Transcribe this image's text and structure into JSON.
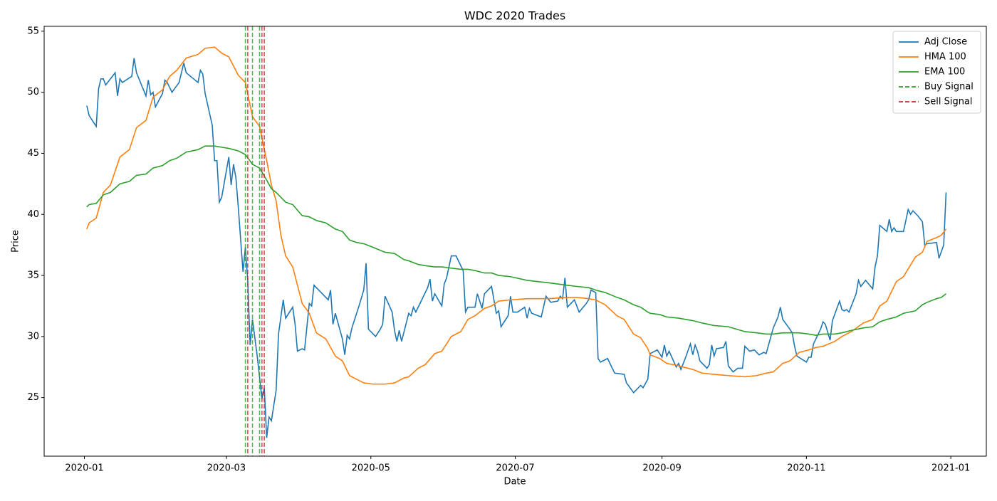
{
  "chart_data": {
    "type": "line",
    "title": "WDC 2020 Trades",
    "xlabel": "Date",
    "ylabel": "Price",
    "xlim": [
      "2019-12-15",
      "2021-01-16"
    ],
    "ylim": [
      20.2,
      55.4
    ],
    "xticks": [
      {
        "value": "2020-01-01",
        "label": "2020-01"
      },
      {
        "value": "2020-03-01",
        "label": "2020-03"
      },
      {
        "value": "2020-05-01",
        "label": "2020-05"
      },
      {
        "value": "2020-07-01",
        "label": "2020-07"
      },
      {
        "value": "2020-09-01",
        "label": "2020-09"
      },
      {
        "value": "2020-11-01",
        "label": "2020-11"
      },
      {
        "value": "2021-01-01",
        "label": "2021-01"
      }
    ],
    "yticks": [
      25,
      30,
      35,
      40,
      45,
      50,
      55
    ],
    "legend": "upper right",
    "series": [
      {
        "name": "Adj Close",
        "color": "#1f77b4",
        "x": [
          "2020-01-02",
          "2020-01-03",
          "2020-01-06",
          "2020-01-07",
          "2020-01-08",
          "2020-01-09",
          "2020-01-10",
          "2020-01-14",
          "2020-01-15",
          "2020-01-16",
          "2020-01-17",
          "2020-01-21",
          "2020-01-22",
          "2020-01-23",
          "2020-01-27",
          "2020-01-28",
          "2020-01-29",
          "2020-01-30",
          "2020-01-31",
          "2020-02-03",
          "2020-02-04",
          "2020-02-05",
          "2020-02-07",
          "2020-02-10",
          "2020-02-12",
          "2020-02-13",
          "2020-02-18",
          "2020-02-19",
          "2020-02-20",
          "2020-02-21",
          "2020-02-24",
          "2020-02-25",
          "2020-02-26",
          "2020-02-27",
          "2020-02-28",
          "2020-03-02",
          "2020-03-03",
          "2020-03-04",
          "2020-03-05",
          "2020-03-06",
          "2020-03-08",
          "2020-03-09",
          "2020-03-10",
          "2020-03-11",
          "2020-03-12",
          "2020-03-14",
          "2020-03-16",
          "2020-03-17",
          "2020-03-18",
          "2020-03-19",
          "2020-03-20",
          "2020-03-22",
          "2020-03-23",
          "2020-03-25",
          "2020-03-26",
          "2020-03-29",
          "2020-03-30",
          "2020-03-31",
          "2020-04-02",
          "2020-04-03",
          "2020-04-05",
          "2020-04-06",
          "2020-04-07",
          "2020-04-10",
          "2020-04-13",
          "2020-04-14",
          "2020-04-15",
          "2020-04-16",
          "2020-04-19",
          "2020-04-20",
          "2020-04-21",
          "2020-04-22",
          "2020-04-23",
          "2020-04-26",
          "2020-04-28",
          "2020-04-29",
          "2020-04-30",
          "2020-05-03",
          "2020-05-05",
          "2020-05-06",
          "2020-05-07",
          "2020-05-10",
          "2020-05-11",
          "2020-05-12",
          "2020-05-13",
          "2020-05-14",
          "2020-05-17",
          "2020-05-18",
          "2020-05-19",
          "2020-05-20",
          "2020-05-25",
          "2020-05-26",
          "2020-05-27",
          "2020-05-28",
          "2020-05-31",
          "2020-06-01",
          "2020-06-02",
          "2020-06-04",
          "2020-06-06",
          "2020-06-09",
          "2020-06-10",
          "2020-06-11",
          "2020-06-14",
          "2020-06-15",
          "2020-06-17",
          "2020-06-18",
          "2020-06-21",
          "2020-06-23",
          "2020-06-24",
          "2020-06-25",
          "2020-06-28",
          "2020-06-29",
          "2020-06-30",
          "2020-07-02",
          "2020-07-05",
          "2020-07-06",
          "2020-07-07",
          "2020-07-08",
          "2020-07-12",
          "2020-07-14",
          "2020-07-16",
          "2020-07-19",
          "2020-07-20",
          "2020-07-21",
          "2020-07-22",
          "2020-07-23",
          "2020-07-26",
          "2020-07-28",
          "2020-07-31",
          "2020-08-01",
          "2020-08-02",
          "2020-08-04",
          "2020-08-05",
          "2020-08-06",
          "2020-08-09",
          "2020-08-10",
          "2020-08-12",
          "2020-08-16",
          "2020-08-17",
          "2020-08-20",
          "2020-08-23",
          "2020-08-24",
          "2020-08-26",
          "2020-08-27",
          "2020-08-30",
          "2020-09-01",
          "2020-09-02",
          "2020-09-03",
          "2020-09-04",
          "2020-09-07",
          "2020-09-08",
          "2020-09-09",
          "2020-09-11",
          "2020-09-13",
          "2020-09-14",
          "2020-09-15",
          "2020-09-16",
          "2020-09-17",
          "2020-09-20",
          "2020-09-21",
          "2020-09-22",
          "2020-09-23",
          "2020-09-24",
          "2020-09-27",
          "2020-09-28",
          "2020-09-29",
          "2020-10-01",
          "2020-10-03",
          "2020-10-05",
          "2020-10-06",
          "2020-10-08",
          "2020-10-10",
          "2020-10-12",
          "2020-10-14",
          "2020-10-15",
          "2020-10-18",
          "2020-10-20",
          "2020-10-21",
          "2020-10-22",
          "2020-10-25",
          "2020-10-26",
          "2020-10-27",
          "2020-10-28",
          "2020-11-01",
          "2020-11-02",
          "2020-11-03",
          "2020-11-04",
          "2020-11-07",
          "2020-11-08",
          "2020-11-09",
          "2020-11-11",
          "2020-11-12",
          "2020-11-15",
          "2020-11-16",
          "2020-11-17",
          "2020-11-18",
          "2020-11-19",
          "2020-11-22",
          "2020-11-23",
          "2020-11-24",
          "2020-11-26",
          "2020-11-29",
          "2020-11-30",
          "2020-12-01",
          "2020-12-02",
          "2020-12-05",
          "2020-12-06",
          "2020-12-07",
          "2020-12-08",
          "2020-12-09",
          "2020-12-12",
          "2020-12-14",
          "2020-12-15",
          "2020-12-16",
          "2020-12-18",
          "2020-12-20",
          "2020-12-21",
          "2020-12-22",
          "2020-12-26",
          "2020-12-27",
          "2020-12-29",
          "2020-12-30"
        ],
        "values": [
          48.9,
          48.1,
          47.2,
          50.3,
          51.1,
          51.1,
          50.6,
          51.6,
          49.7,
          51.1,
          50.8,
          51.3,
          52.8,
          51.6,
          49.7,
          51.0,
          49.8,
          50.0,
          48.8,
          49.9,
          51.0,
          50.8,
          50.0,
          50.8,
          52.4,
          51.6,
          50.8,
          51.8,
          51.5,
          49.9,
          47.3,
          44.4,
          44.4,
          41.0,
          41.4,
          44.7,
          42.4,
          44.1,
          43.0,
          40.6,
          35.3,
          37.3,
          34.6,
          29.3,
          31.4,
          28.4,
          24.9,
          25.8,
          21.7,
          23.4,
          23.1,
          25.6,
          30.2,
          33.0,
          31.5,
          32.4,
          31.0,
          28.8,
          29.0,
          28.9,
          32.7,
          32.5,
          34.2,
          33.6,
          33.0,
          33.8,
          31.0,
          31.9,
          29.8,
          28.5,
          30.1,
          29.8,
          30.7,
          32.5,
          33.8,
          36.0,
          30.6,
          30.0,
          30.6,
          31.0,
          33.3,
          32.0,
          30.5,
          29.6,
          30.5,
          29.6,
          31.9,
          31.7,
          32.4,
          32.0,
          34.0,
          34.7,
          32.9,
          33.5,
          32.5,
          34.3,
          34.8,
          36.6,
          36.6,
          35.4,
          32.0,
          32.4,
          32.4,
          33.5,
          32.3,
          33.5,
          34.1,
          31.9,
          32.1,
          30.8,
          31.7,
          33.3,
          32.0,
          32.0,
          32.4,
          31.5,
          32.3,
          31.9,
          31.6,
          33.3,
          32.8,
          32.9,
          33.3,
          33.1,
          34.8,
          32.4,
          33.0,
          32.0,
          32.7,
          33.0,
          33.8,
          33.6,
          28.2,
          27.9,
          28.2,
          27.8,
          27.0,
          26.9,
          26.2,
          25.4,
          26.0,
          25.8,
          26.5,
          28.6,
          28.9,
          28.3,
          29.3,
          28.4,
          28.8,
          27.5,
          27.8,
          27.3,
          28.3,
          29.4,
          28.5,
          29.3,
          28.8,
          28.0,
          27.4,
          27.7,
          29.3,
          28.4,
          29.0,
          29.1,
          29.6,
          27.6,
          27.1,
          27.4,
          27.4,
          29.2,
          28.8,
          28.9,
          28.5,
          28.7,
          28.6,
          30.7,
          31.6,
          32.4,
          31.4,
          30.6,
          30.3,
          29.2,
          28.4,
          27.9,
          28.3,
          28.3,
          29.4,
          30.6,
          31.2,
          31.0,
          29.7,
          31.3,
          32.9,
          32.2,
          32.1,
          32.2,
          32.0,
          33.5,
          34.6,
          34.1,
          34.6,
          33.9,
          35.7,
          36.6,
          39.1,
          38.6,
          39.6,
          38.6,
          38.9,
          38.6,
          38.6,
          40.4,
          40.0,
          40.3,
          39.9,
          39.4,
          37.5,
          37.6,
          37.7,
          36.4,
          37.5,
          41.8
        ]
      },
      {
        "name": "HMA 100",
        "color": "#ff7f0e",
        "x": [
          "2020-01-02",
          "2020-01-03",
          "2020-01-06",
          "2020-01-09",
          "2020-01-12",
          "2020-01-16",
          "2020-01-20",
          "2020-01-23",
          "2020-01-27",
          "2020-01-30",
          "2020-02-03",
          "2020-02-06",
          "2020-02-09",
          "2020-02-13",
          "2020-02-18",
          "2020-02-21",
          "2020-02-25",
          "2020-02-28",
          "2020-03-02",
          "2020-03-06",
          "2020-03-09",
          "2020-03-12",
          "2020-03-15",
          "2020-03-18",
          "2020-03-20",
          "2020-03-22",
          "2020-03-24",
          "2020-03-26",
          "2020-03-29",
          "2020-04-02",
          "2020-04-05",
          "2020-04-08",
          "2020-04-12",
          "2020-04-16",
          "2020-04-19",
          "2020-04-22",
          "2020-04-25",
          "2020-04-28",
          "2020-05-02",
          "2020-05-07",
          "2020-05-11",
          "2020-05-15",
          "2020-05-17",
          "2020-05-21",
          "2020-05-24",
          "2020-05-28",
          "2020-05-31",
          "2020-06-04",
          "2020-06-08",
          "2020-06-11",
          "2020-06-14",
          "2020-06-18",
          "2020-06-21",
          "2020-06-24",
          "2020-06-29",
          "2020-07-06",
          "2020-07-15",
          "2020-07-23",
          "2020-07-27",
          "2020-08-01",
          "2020-08-04",
          "2020-08-08",
          "2020-08-13",
          "2020-08-16",
          "2020-08-20",
          "2020-08-23",
          "2020-08-26",
          "2020-08-27",
          "2020-08-31",
          "2020-09-03",
          "2020-09-08",
          "2020-09-14",
          "2020-09-18",
          "2020-09-23",
          "2020-09-29",
          "2020-10-06",
          "2020-10-11",
          "2020-10-15",
          "2020-10-18",
          "2020-10-22",
          "2020-10-25",
          "2020-10-29",
          "2020-11-02",
          "2020-11-05",
          "2020-11-08",
          "2020-11-13",
          "2020-11-16",
          "2020-11-20",
          "2020-11-25",
          "2020-11-29",
          "2020-12-02",
          "2020-12-05",
          "2020-12-09",
          "2020-12-12",
          "2020-12-17",
          "2020-12-20",
          "2020-12-22",
          "2020-12-26",
          "2020-12-28",
          "2020-12-30"
        ],
        "values": [
          38.8,
          39.3,
          39.7,
          41.8,
          42.4,
          44.7,
          45.3,
          47.1,
          47.7,
          49.6,
          50.2,
          51.3,
          51.8,
          52.8,
          53.1,
          53.6,
          53.7,
          53.2,
          52.9,
          51.4,
          50.8,
          48.0,
          47.2,
          44.4,
          42.4,
          41.1,
          38.3,
          36.6,
          35.7,
          32.7,
          31.9,
          30.3,
          29.8,
          28.4,
          28.0,
          26.8,
          26.5,
          26.2,
          26.1,
          26.1,
          26.2,
          26.6,
          26.7,
          27.4,
          27.7,
          28.6,
          28.8,
          30.0,
          30.4,
          31.4,
          31.7,
          32.3,
          32.5,
          32.9,
          33.0,
          33.1,
          33.1,
          33.2,
          33.2,
          33.1,
          33.0,
          32.6,
          31.7,
          31.4,
          30.2,
          29.9,
          29.0,
          28.5,
          28.2,
          27.8,
          27.6,
          27.3,
          27.0,
          26.9,
          26.8,
          26.7,
          26.8,
          27.0,
          27.1,
          27.8,
          28.0,
          28.7,
          28.9,
          29.1,
          29.2,
          29.6,
          30.0,
          30.4,
          31.1,
          31.4,
          32.5,
          32.9,
          34.5,
          34.9,
          36.5,
          36.9,
          37.8,
          38.1,
          38.3,
          38.8
        ]
      },
      {
        "name": "EMA 100",
        "color": "#2ca02c",
        "x": [
          "2020-01-02",
          "2020-01-03",
          "2020-01-06",
          "2020-01-09",
          "2020-01-12",
          "2020-01-16",
          "2020-01-20",
          "2020-01-23",
          "2020-01-27",
          "2020-01-30",
          "2020-02-03",
          "2020-02-06",
          "2020-02-09",
          "2020-02-13",
          "2020-02-18",
          "2020-02-21",
          "2020-02-25",
          "2020-02-28",
          "2020-03-02",
          "2020-03-06",
          "2020-03-09",
          "2020-03-12",
          "2020-03-15",
          "2020-03-18",
          "2020-03-20",
          "2020-03-22",
          "2020-03-24",
          "2020-03-26",
          "2020-03-29",
          "2020-04-02",
          "2020-04-05",
          "2020-04-08",
          "2020-04-12",
          "2020-04-16",
          "2020-04-19",
          "2020-04-22",
          "2020-04-25",
          "2020-04-28",
          "2020-05-02",
          "2020-05-07",
          "2020-05-11",
          "2020-05-15",
          "2020-05-17",
          "2020-05-21",
          "2020-05-24",
          "2020-05-28",
          "2020-05-31",
          "2020-06-04",
          "2020-06-08",
          "2020-06-11",
          "2020-06-14",
          "2020-06-18",
          "2020-06-21",
          "2020-06-24",
          "2020-06-29",
          "2020-07-06",
          "2020-07-15",
          "2020-07-23",
          "2020-07-27",
          "2020-08-01",
          "2020-08-04",
          "2020-08-08",
          "2020-08-13",
          "2020-08-16",
          "2020-08-20",
          "2020-08-23",
          "2020-08-26",
          "2020-08-27",
          "2020-08-31",
          "2020-09-03",
          "2020-09-08",
          "2020-09-14",
          "2020-09-18",
          "2020-09-23",
          "2020-09-29",
          "2020-10-06",
          "2020-10-11",
          "2020-10-15",
          "2020-10-18",
          "2020-10-22",
          "2020-10-25",
          "2020-10-29",
          "2020-11-02",
          "2020-11-05",
          "2020-11-08",
          "2020-11-13",
          "2020-11-16",
          "2020-11-20",
          "2020-11-25",
          "2020-11-29",
          "2020-12-02",
          "2020-12-05",
          "2020-12-09",
          "2020-12-12",
          "2020-12-17",
          "2020-12-20",
          "2020-12-22",
          "2020-12-26",
          "2020-12-28",
          "2020-12-30"
        ],
        "values": [
          40.6,
          40.8,
          40.9,
          41.6,
          41.8,
          42.5,
          42.7,
          43.2,
          43.3,
          43.8,
          44.0,
          44.4,
          44.6,
          45.1,
          45.3,
          45.6,
          45.6,
          45.5,
          45.4,
          45.2,
          44.9,
          44.1,
          43.8,
          42.8,
          42.1,
          41.8,
          41.4,
          41.0,
          40.8,
          39.9,
          39.8,
          39.5,
          39.3,
          38.8,
          38.6,
          37.9,
          37.7,
          37.6,
          37.3,
          36.9,
          36.8,
          36.3,
          36.2,
          35.9,
          35.8,
          35.7,
          35.7,
          35.6,
          35.5,
          35.5,
          35.4,
          35.2,
          35.2,
          35.0,
          34.9,
          34.6,
          34.4,
          34.2,
          34.1,
          34.0,
          33.8,
          33.6,
          33.2,
          33.0,
          32.6,
          32.4,
          32.0,
          31.9,
          31.8,
          31.6,
          31.5,
          31.3,
          31.1,
          30.9,
          30.8,
          30.4,
          30.3,
          30.2,
          30.2,
          30.3,
          30.3,
          30.3,
          30.2,
          30.1,
          30.2,
          30.2,
          30.3,
          30.5,
          30.7,
          30.8,
          31.2,
          31.4,
          31.6,
          31.9,
          32.1,
          32.6,
          32.8,
          33.1,
          33.2,
          33.5
        ]
      },
      {
        "name": "Buy Signal",
        "type": "vline",
        "color": "#2ca02c",
        "x": [
          "2020-03-09",
          "2020-03-12",
          "2020-03-15"
        ]
      },
      {
        "name": "Sell Signal",
        "type": "vline",
        "color": "#d62728",
        "x": [
          "2020-03-10",
          "2020-03-16",
          "2020-03-17"
        ]
      }
    ]
  }
}
